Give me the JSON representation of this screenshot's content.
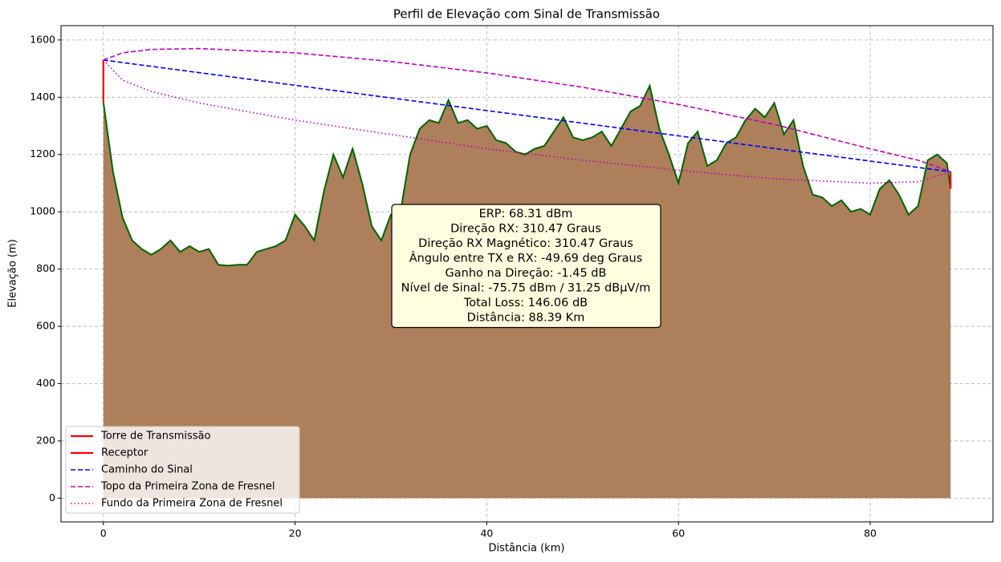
{
  "chart_data": {
    "type": "elevation-profile",
    "title": "Perfil de Elevação com Sinal de Transmissão",
    "x_label": "Distância (km)",
    "y_label": "Elevação (m)",
    "xlim": [
      -4.42,
      92.81
    ],
    "ylim": [
      -83,
      1650
    ],
    "xticks": [
      0,
      20,
      40,
      60,
      80
    ],
    "yticks": [
      0,
      200,
      400,
      600,
      800,
      1000,
      1200,
      1400,
      1600
    ],
    "grid": true,
    "legend_position": "lower left",
    "terrain": {
      "fill": "#ad7f5a",
      "line_color": "#006400",
      "x": [
        0,
        1,
        2,
        3,
        4,
        5,
        6,
        7,
        8,
        9,
        10,
        11,
        12,
        13,
        14,
        15,
        16,
        17,
        18,
        19,
        20,
        21,
        22,
        23,
        24,
        25,
        26,
        27,
        28,
        29,
        30,
        31,
        32,
        33,
        34,
        35,
        36,
        37,
        38,
        39,
        40,
        41,
        42,
        43,
        44,
        45,
        46,
        47,
        48,
        49,
        50,
        51,
        52,
        53,
        54,
        55,
        56,
        57,
        58,
        59,
        60,
        61,
        62,
        63,
        64,
        65,
        66,
        67,
        68,
        69,
        70,
        71,
        72,
        73,
        74,
        75,
        76,
        77,
        78,
        79,
        80,
        81,
        82,
        83,
        84,
        85,
        86,
        87,
        88,
        88.39
      ],
      "values": [
        1383,
        1140,
        980,
        900,
        870,
        850,
        870,
        900,
        860,
        880,
        860,
        870,
        815,
        812,
        815,
        815,
        860,
        870,
        880,
        900,
        990,
        950,
        900,
        1070,
        1200,
        1120,
        1220,
        1100,
        950,
        900,
        990,
        1000,
        1200,
        1290,
        1320,
        1310,
        1390,
        1310,
        1320,
        1290,
        1300,
        1250,
        1240,
        1210,
        1200,
        1220,
        1230,
        1280,
        1330,
        1260,
        1250,
        1260,
        1280,
        1230,
        1290,
        1350,
        1370,
        1440,
        1290,
        1200,
        1100,
        1240,
        1280,
        1160,
        1180,
        1240,
        1260,
        1320,
        1360,
        1330,
        1380,
        1270,
        1320,
        1160,
        1060,
        1050,
        1020,
        1040,
        1000,
        1010,
        990,
        1080,
        1110,
        1060,
        990,
        1020,
        1180,
        1200,
        1170,
        1080
      ]
    },
    "series": [
      {
        "name": "Torre de Transmissão",
        "color": "#ff0000",
        "linestyle": "solid",
        "x": [
          0,
          0
        ],
        "values": [
          1383,
          1530
        ]
      },
      {
        "name": "Receptor",
        "color": "#ff0000",
        "linestyle": "solid",
        "x": [
          88.39,
          88.39
        ],
        "values": [
          1080,
          1140
        ]
      },
      {
        "name": "Caminho do Sinal",
        "color": "#0000ff",
        "linestyle": "dashed",
        "x": [
          0,
          88.39
        ],
        "values": [
          1530,
          1140
        ]
      },
      {
        "name": "Topo da Primeira Zona de Fresnel",
        "color": "#bf00bf",
        "linestyle": "dashed",
        "x": [
          0,
          2,
          5,
          10,
          20,
          30,
          40,
          50,
          60,
          70,
          80,
          85,
          88.39
        ],
        "values": [
          1530,
          1555,
          1567,
          1570,
          1555,
          1525,
          1485,
          1435,
          1375,
          1305,
          1220,
          1180,
          1140
        ]
      },
      {
        "name": "Fundo da Primeira Zona de Fresnel",
        "color": "#bf00bf",
        "linestyle": "dotted",
        "x": [
          0,
          2,
          5,
          10,
          20,
          30,
          40,
          50,
          60,
          70,
          80,
          85,
          88.39
        ],
        "values": [
          1530,
          1460,
          1420,
          1380,
          1320,
          1270,
          1220,
          1180,
          1145,
          1115,
          1100,
          1105,
          1140
        ]
      }
    ],
    "annotation": [
      "ERP: 68.31 dBm",
      "Direção RX: 310.47 Graus",
      "Direção RX Magnético: 310.47 Graus",
      "Ângulo entre TX e RX: -49.69 deg Graus",
      "Ganho na Direção: -1.45 dB",
      "Nível de Sinal: -75.75 dBm / 31.25 dBµV/m",
      "Total Loss: 146.06 dB",
      "Distância: 88.39 Km"
    ]
  }
}
